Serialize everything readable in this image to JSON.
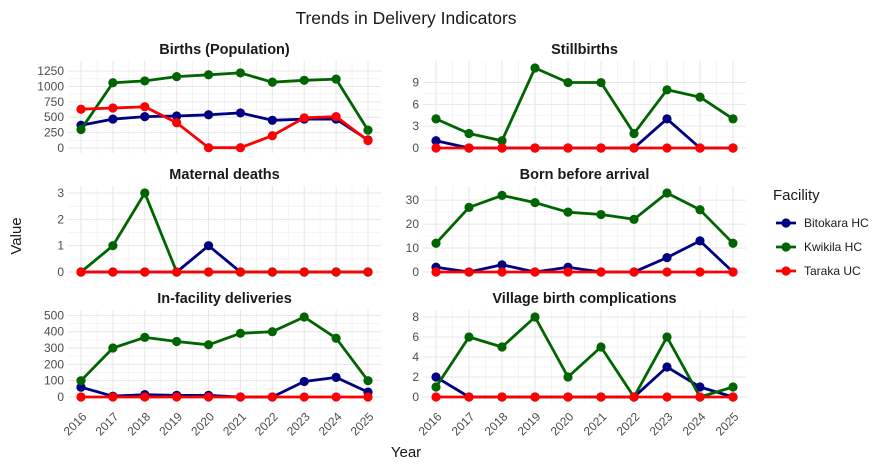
{
  "chart_data": {
    "type": "line",
    "title": "Trends in Delivery Indicators",
    "xlabel": "Year",
    "ylabel": "Value",
    "legend": {
      "title": "Facility",
      "position": "right"
    },
    "x": [
      2016,
      2017,
      2018,
      2019,
      2020,
      2021,
      2022,
      2023,
      2024,
      2025
    ],
    "colors": {
      "Bitokara HC": "#000080",
      "Kwikila HC": "#006400",
      "Taraka UC": "#ff0000"
    },
    "grid": true,
    "panels": [
      {
        "title": "Births (Population)",
        "ylim": [
          0,
          1300
        ],
        "yticks": [
          0,
          250,
          500,
          750,
          1000,
          1250
        ],
        "series": [
          {
            "name": "Bitokara HC",
            "values": [
              370,
              470,
              510,
              520,
              540,
              570,
              450,
              470,
              470,
              130
            ]
          },
          {
            "name": "Kwikila HC",
            "values": [
              300,
              1060,
              1090,
              1160,
              1190,
              1220,
              1070,
              1100,
              1120,
              290
            ]
          },
          {
            "name": "Taraka UC",
            "values": [
              630,
              650,
              670,
              410,
              5,
              5,
              200,
              490,
              510,
              120
            ]
          }
        ]
      },
      {
        "title": "Stillbirths",
        "ylim": [
          0,
          11
        ],
        "yticks": [
          0,
          3,
          6,
          9
        ],
        "series": [
          {
            "name": "Bitokara HC",
            "values": [
              1,
              0,
              0,
              0,
              0,
              0,
              0,
              4,
              0,
              0
            ]
          },
          {
            "name": "Kwikila HC",
            "values": [
              4,
              2,
              1,
              11,
              9,
              9,
              2,
              8,
              7,
              4
            ]
          },
          {
            "name": "Taraka UC",
            "values": [
              0,
              0,
              0,
              0,
              0,
              0,
              0,
              0,
              0,
              0
            ]
          }
        ]
      },
      {
        "title": "Maternal deaths",
        "ylim": [
          0,
          3
        ],
        "yticks": [
          0,
          1,
          2,
          3
        ],
        "series": [
          {
            "name": "Bitokara HC",
            "values": [
              0,
              0,
              0,
              0,
              1,
              0,
              0,
              0,
              0,
              0
            ]
          },
          {
            "name": "Kwikila HC",
            "values": [
              0,
              1,
              3,
              0,
              0,
              0,
              0,
              0,
              0,
              0
            ]
          },
          {
            "name": "Taraka UC",
            "values": [
              0,
              0,
              0,
              0,
              0,
              0,
              0,
              0,
              0,
              0
            ]
          }
        ]
      },
      {
        "title": "Born before arrival",
        "ylim": [
          0,
          33
        ],
        "yticks": [
          0,
          10,
          20,
          30
        ],
        "series": [
          {
            "name": "Bitokara HC",
            "values": [
              2,
              0,
              3,
              0,
              2,
              0,
              0,
              6,
              13,
              0
            ]
          },
          {
            "name": "Kwikila HC",
            "values": [
              12,
              27,
              32,
              29,
              25,
              24,
              22,
              33,
              26,
              12
            ]
          },
          {
            "name": "Taraka UC",
            "values": [
              0,
              0,
              0,
              0,
              0,
              0,
              0,
              0,
              0,
              0
            ]
          }
        ]
      },
      {
        "title": "In-facility deliveries",
        "ylim": [
          0,
          490
        ],
        "yticks": [
          0,
          100,
          200,
          300,
          400,
          500
        ],
        "series": [
          {
            "name": "Bitokara HC",
            "values": [
              60,
              5,
              15,
              10,
              10,
              0,
              0,
              95,
              120,
              30
            ]
          },
          {
            "name": "Kwikila HC",
            "values": [
              100,
              300,
              365,
              340,
              320,
              390,
              400,
              490,
              360,
              100
            ]
          },
          {
            "name": "Taraka UC",
            "values": [
              0,
              0,
              0,
              0,
              0,
              0,
              0,
              0,
              0,
              0
            ]
          }
        ]
      },
      {
        "title": "Village birth complications",
        "ylim": [
          0,
          8
        ],
        "yticks": [
          0,
          2,
          4,
          6,
          8
        ],
        "series": [
          {
            "name": "Bitokara HC",
            "values": [
              2,
              0,
              0,
              0,
              0,
              0,
              0,
              3,
              1,
              0
            ]
          },
          {
            "name": "Kwikila HC",
            "values": [
              1,
              6,
              5,
              8,
              2,
              5,
              0,
              6,
              0,
              1
            ]
          },
          {
            "name": "Taraka UC",
            "values": [
              0,
              0,
              0,
              0,
              0,
              0,
              0,
              0,
              0,
              0
            ]
          }
        ]
      }
    ]
  }
}
